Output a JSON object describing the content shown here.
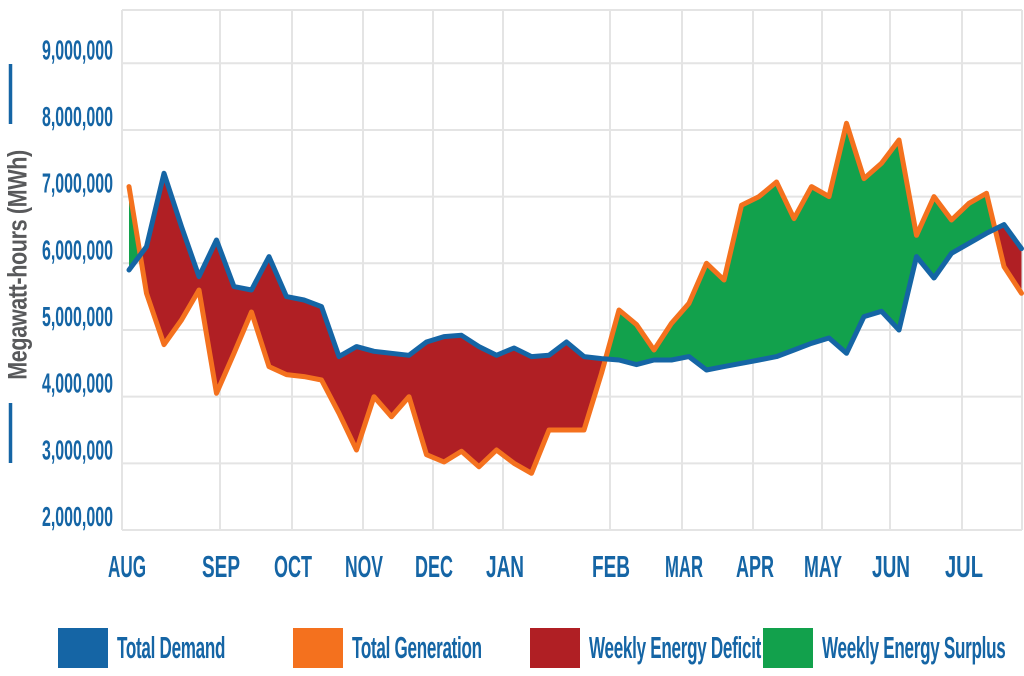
{
  "chart_data": {
    "type": "area",
    "title": "",
    "xlabel": "",
    "ylabel": "Megawatt-hours (MWh)",
    "x_description": "52 weekly values spanning August through July",
    "months": [
      "AUG",
      "SEP",
      "OCT",
      "NOV",
      "DEC",
      "JAN",
      "FEB",
      "MAR",
      "APR",
      "MAY",
      "JUN",
      "JUL"
    ],
    "y_ticks": [
      "9,000,000",
      "8,000,000",
      "7,000,000",
      "6,000,000",
      "5,000,000",
      "4,000,000",
      "3,000,000",
      "2,000,000"
    ],
    "y_tick_values": [
      9000000,
      8000000,
      7000000,
      6000000,
      5000000,
      4000000,
      3000000,
      2000000
    ],
    "ylim": [
      2000000,
      9000000
    ],
    "grid": true,
    "legend_position": "bottom",
    "background": "#FFFFFF",
    "grid_color": "#E4E4E4",
    "axis_text_color": "#1565A5",
    "ylabel_color": "#58595B",
    "series": [
      {
        "name": "Total Demand",
        "color": "#1565A5",
        "values": [
          5900000,
          6250000,
          7350000,
          6550000,
          5800000,
          6350000,
          5650000,
          5600000,
          6100000,
          5500000,
          5450000,
          5350000,
          4600000,
          4750000,
          4680000,
          4650000,
          4620000,
          4820000,
          4900000,
          4920000,
          4750000,
          4620000,
          4730000,
          4600000,
          4620000,
          4820000,
          4600000,
          4570000,
          4550000,
          4480000,
          4550000,
          4550000,
          4600000,
          4400000,
          4450000,
          4500000,
          4550000,
          4600000,
          4700000,
          4800000,
          4880000,
          4650000,
          5200000,
          5280000,
          5000000,
          6100000,
          5780000,
          6150000,
          6300000,
          6450000,
          6580000,
          6220000
        ]
      },
      {
        "name": "Total Generation",
        "color": "#F4711E",
        "values": [
          7150000,
          5550000,
          4780000,
          5150000,
          5600000,
          4050000,
          4650000,
          5270000,
          4450000,
          4330000,
          4300000,
          4250000,
          3750000,
          3200000,
          4000000,
          3700000,
          4000000,
          3130000,
          3020000,
          3180000,
          2950000,
          3200000,
          3000000,
          2850000,
          3500000,
          3500000,
          3500000,
          4350000,
          5300000,
          5080000,
          4700000,
          5100000,
          5400000,
          6000000,
          5750000,
          6870000,
          7000000,
          7220000,
          6670000,
          7150000,
          7000000,
          8100000,
          7270000,
          7500000,
          7850000,
          6420000,
          7000000,
          6650000,
          6900000,
          7050000,
          5950000,
          5550000
        ]
      }
    ],
    "bands": [
      {
        "name": "Weekly Energy Deficit",
        "color": "#B01F24",
        "condition": "demand above generation"
      },
      {
        "name": "Weekly Energy Surplus",
        "color": "#12A14C",
        "condition": "generation above demand"
      }
    ],
    "legend": [
      {
        "label": "Total Demand",
        "color": "#1565A5"
      },
      {
        "label": "Total Generation",
        "color": "#F4711E"
      },
      {
        "label": "Weekly Energy Deficit",
        "color": "#B01F24"
      },
      {
        "label": "Weekly Energy Surplus",
        "color": "#12A14C"
      }
    ]
  }
}
